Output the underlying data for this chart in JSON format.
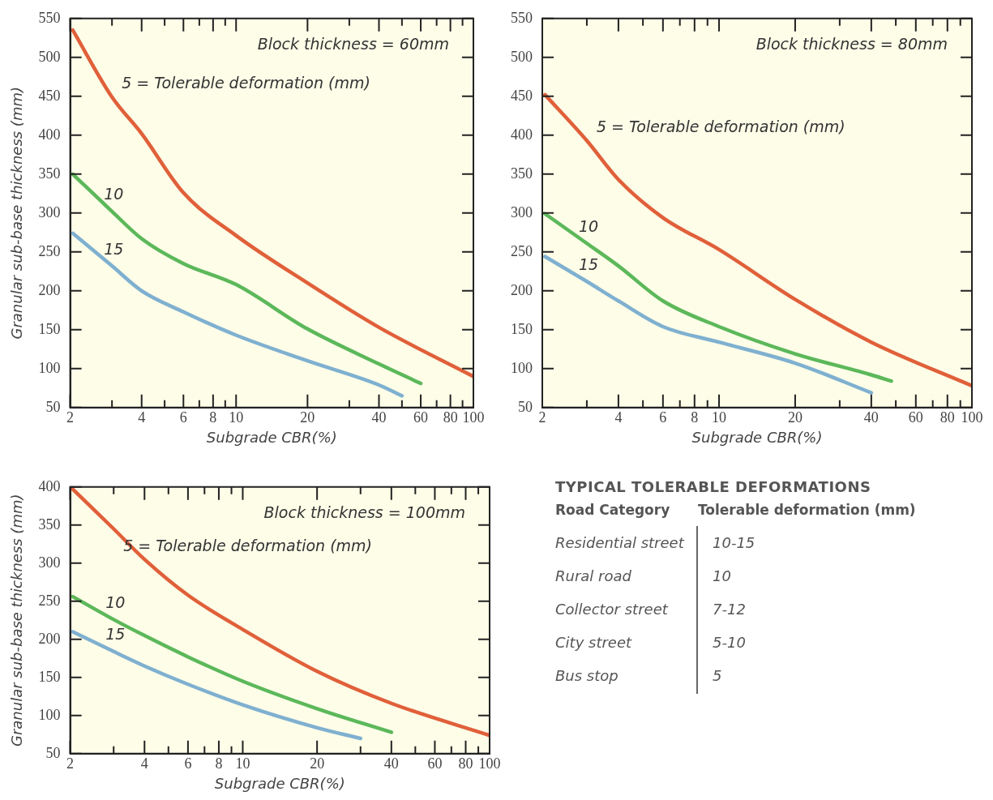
{
  "chart_data": [
    {
      "type": "line",
      "xlabel": "Subgrade CBR(%)",
      "ylabel": "Granular sub-base thickness (mm)",
      "log": "x",
      "marker": "none",
      "line_style": "solid",
      "annotations": [
        "Block thickness = 60mm"
      ],
      "xlim": [
        2,
        100
      ],
      "xticks": [
        2,
        {
          "value": 3,
          "label": null
        },
        4,
        {
          "value": 5,
          "label": null
        },
        6,
        {
          "value": 7,
          "label": null
        },
        8,
        {
          "value": 9,
          "label": null
        },
        10,
        20,
        {
          "value": 30,
          "label": null
        },
        40,
        {
          "value": 50,
          "label": null
        },
        60,
        {
          "value": 70,
          "label": null
        },
        80,
        {
          "value": 90,
          "label": null
        },
        100
      ],
      "ylim": [
        50,
        550
      ],
      "yticks": [
        50,
        100,
        150,
        200,
        250,
        300,
        350,
        400,
        450,
        500,
        550
      ],
      "series": [
        {
          "name": "5 = Tolerable deformation (mm)",
          "color": "#e0603a",
          "x": [
            2.05,
            3,
            4,
            6,
            10,
            20,
            40,
            100
          ],
          "values": [
            535,
            449,
            402,
            326,
            271,
            210,
            153,
            90
          ]
        },
        {
          "name": "10",
          "color": "#5cb85a",
          "x": [
            2.05,
            3,
            4,
            6,
            10,
            20,
            40,
            60
          ],
          "values": [
            350,
            302,
            267,
            235,
            208,
            151,
            106,
            81
          ]
        },
        {
          "name": "15",
          "color": "#7fb0d0",
          "x": [
            2.05,
            3,
            4,
            6,
            10,
            20,
            40,
            50
          ],
          "values": [
            274,
            232,
            200,
            173,
            143,
            110,
            79,
            65
          ]
        }
      ]
    },
    {
      "type": "line",
      "xlabel": "Subgrade CBR(%)",
      "log": "x",
      "marker": "none",
      "line_style": "solid",
      "annotations": [
        "Block thickness = 80mm"
      ],
      "xlim": [
        2,
        100
      ],
      "xticks": [
        2,
        {
          "value": 3,
          "label": null
        },
        4,
        {
          "value": 5,
          "label": null
        },
        6,
        {
          "value": 7,
          "label": null
        },
        8,
        {
          "value": 9,
          "label": null
        },
        10,
        20,
        {
          "value": 30,
          "label": null
        },
        40,
        {
          "value": 50,
          "label": null
        },
        60,
        {
          "value": 70,
          "label": null
        },
        80,
        {
          "value": 90,
          "label": null
        },
        100
      ],
      "ylim": [
        50,
        550
      ],
      "yticks": [
        50,
        100,
        150,
        200,
        250,
        300,
        350,
        400,
        450,
        500,
        550
      ],
      "series": [
        {
          "name": "5 = Tolerable deformation (mm)",
          "color": "#e0603a",
          "x": [
            2.05,
            3,
            4,
            6,
            10,
            20,
            40,
            100
          ],
          "values": [
            452,
            393,
            343,
            294,
            253,
            189,
            134,
            78
          ]
        },
        {
          "name": "10",
          "color": "#5cb85a",
          "x": [
            2.05,
            3,
            4,
            6,
            10,
            20,
            40,
            48
          ],
          "values": [
            299,
            261,
            232,
            187,
            154,
            119,
            92,
            84
          ]
        },
        {
          "name": "15",
          "color": "#7fb0d0",
          "x": [
            2.05,
            3,
            4,
            6,
            10,
            20,
            40
          ],
          "values": [
            244,
            212,
            187,
            154,
            134,
            107,
            69
          ]
        }
      ]
    },
    {
      "type": "line",
      "xlabel": "Subgrade CBR(%)",
      "ylabel": "Granular sub-base thickness (mm)",
      "log": "x",
      "marker": "none",
      "line_style": "solid",
      "annotations": [
        "Block thickness = 100mm"
      ],
      "xlim": [
        2,
        100
      ],
      "xticks": [
        2,
        {
          "value": 3,
          "label": null
        },
        4,
        {
          "value": 5,
          "label": null
        },
        6,
        {
          "value": 7,
          "label": null
        },
        8,
        {
          "value": 9,
          "label": null
        },
        10,
        20,
        {
          "value": 30,
          "label": null
        },
        40,
        {
          "value": 50,
          "label": null
        },
        60,
        {
          "value": 70,
          "label": null
        },
        80,
        {
          "value": 90,
          "label": null
        },
        100
      ],
      "ylim": [
        50,
        400
      ],
      "yticks": [
        50,
        100,
        150,
        200,
        250,
        300,
        350,
        400
      ],
      "series": [
        {
          "name": "5 = Tolerable deformation (mm)",
          "color": "#e0603a",
          "x": [
            2.05,
            3,
            4,
            6,
            10,
            20,
            40,
            100
          ],
          "values": [
            397,
            345,
            305,
            258,
            213,
            158,
            116,
            74
          ]
        },
        {
          "name": "10",
          "color": "#5cb85a",
          "x": [
            2.05,
            3,
            4,
            6,
            10,
            20,
            40
          ],
          "values": [
            256,
            226,
            205,
            177,
            145,
            109,
            78
          ]
        },
        {
          "name": "15",
          "color": "#7fb0d0",
          "x": [
            2.05,
            3,
            4,
            6,
            10,
            20,
            30
          ],
          "values": [
            210,
            184,
            165,
            141,
            114,
            84,
            70
          ]
        }
      ]
    },
    {
      "type": "other",
      "title": "TYPICAL TOLERABLE DEFORMATIONS",
      "annotations": [
        "Road Category",
        "Tolerable deformation (mm)",
        "Residential street",
        "10-15",
        "Rural road",
        "10",
        "Collector street",
        "7-12",
        "City street",
        "5-10",
        "Bus stop",
        "5"
      ]
    }
  ]
}
